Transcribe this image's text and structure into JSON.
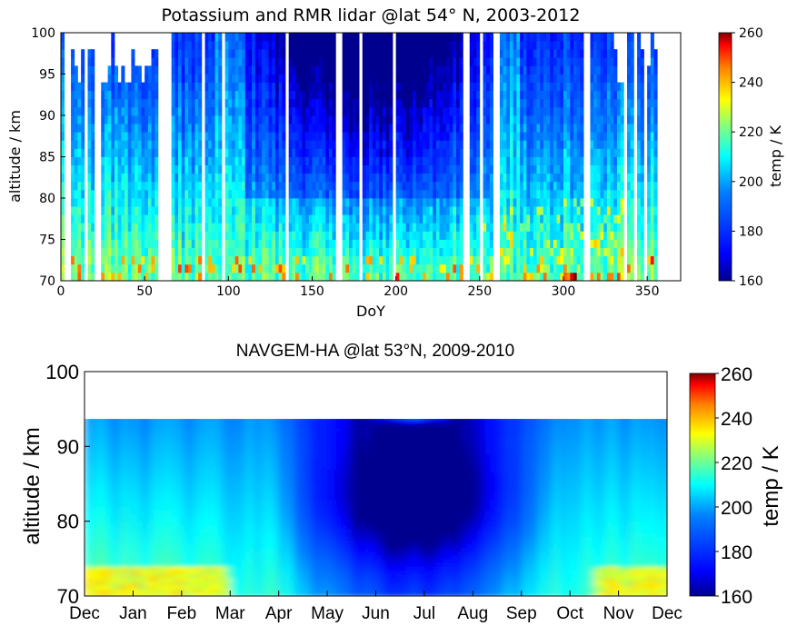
{
  "chart_data": [
    {
      "type": "heatmap",
      "title": "Potassium and RMR lidar @lat 54° N, 2003-2012",
      "xlabel": "DoY",
      "ylabel": "altitude / km",
      "xlim": [
        0,
        370
      ],
      "ylim": [
        70,
        100
      ],
      "xticks": [
        "0",
        "50",
        "100",
        "150",
        "200",
        "250",
        "300",
        "350"
      ],
      "yticks": [
        "70",
        "75",
        "80",
        "85",
        "90",
        "95",
        "100"
      ],
      "colorbar": {
        "label": "temp / K",
        "range": [
          160,
          260
        ],
        "ticks": [
          "160",
          "180",
          "200",
          "220",
          "240",
          "260"
        ]
      },
      "colormap": [
        "#00008f",
        "#0000ff",
        "#00ffff",
        "#ffff00",
        "#ff0000",
        "#800000"
      ]
    },
    {
      "type": "heatmap",
      "title": "NAVGEM-HA @lat 53°N,  2009-2010",
      "xlabel": "",
      "ylabel": "altitude / km",
      "ylim": [
        70,
        100
      ],
      "data_top_altitude": 94,
      "xticks": [
        "Dec",
        "Jan",
        "Feb",
        "Mar",
        "Apr",
        "May",
        "Jun",
        "Jul",
        "Aug",
        "Sep",
        "Oct",
        "Nov",
        "Dec"
      ],
      "yticks": [
        "70",
        "80",
        "90",
        "100"
      ],
      "colorbar": {
        "label": "temp  / K",
        "range": [
          160,
          260
        ],
        "ticks": [
          "160",
          "180",
          "200",
          "220",
          "240",
          "260"
        ]
      },
      "colormap": [
        "#00008f",
        "#0000ff",
        "#00ffff",
        "#ffff00",
        "#ff0000",
        "#800000"
      ]
    }
  ]
}
